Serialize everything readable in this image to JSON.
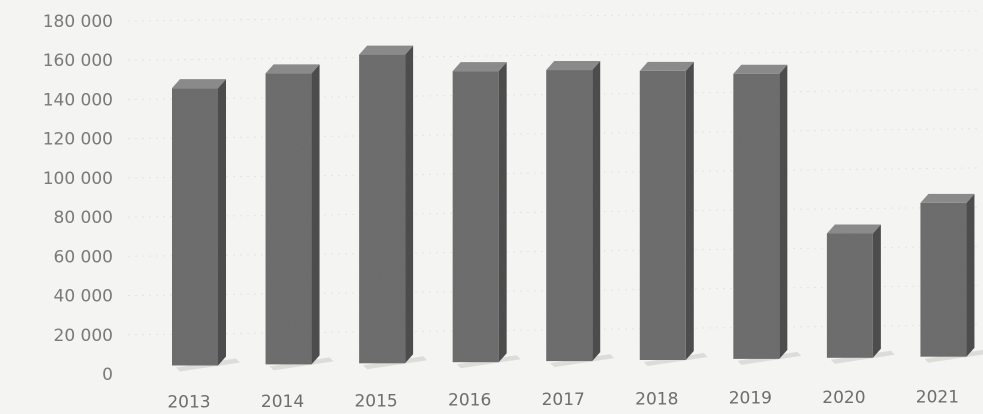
{
  "chart_data": {
    "type": "bar",
    "title": "",
    "xlabel": "",
    "ylabel": "",
    "categories": [
      "2013",
      "2014",
      "2015",
      "2016",
      "2017",
      "2018",
      "2019",
      "2020",
      "2021"
    ],
    "values": [
      146000,
      153000,
      162000,
      153000,
      153000,
      152000,
      150000,
      68000,
      83000
    ],
    "ylim": [
      0,
      180000
    ],
    "y_ticks": [
      0,
      20000,
      40000,
      60000,
      80000,
      100000,
      120000,
      140000,
      160000,
      180000
    ],
    "y_tick_labels": [
      "0",
      "20 000",
      "40 000",
      "60 000",
      "80 000",
      "100 000",
      "120 000",
      "140 000",
      "160 000",
      "180 000"
    ],
    "grid": true,
    "style": "3d-column",
    "colors": {
      "bar_front": "#6f6f6f",
      "bar_side": "#4e4e4e",
      "bar_top": "#8a8a8a",
      "background": "#f4f4f2"
    }
  }
}
